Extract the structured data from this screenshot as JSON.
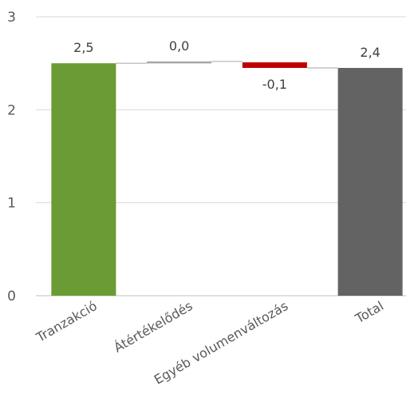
{
  "chart_data": {
    "type": "bar",
    "subtype": "waterfall",
    "categories": [
      "Tranzakció",
      "Átértékelődés",
      "Egyéb volumenváltozás",
      "Total"
    ],
    "values": [
      2.5,
      0.02,
      -0.06,
      2.45
    ],
    "bar_start": [
      0,
      2.5,
      2.51,
      0
    ],
    "bar_end": [
      2.5,
      2.52,
      2.45,
      2.45
    ],
    "data_labels": [
      "2,5",
      "0,0",
      "-0,1",
      "2,4"
    ],
    "label_position": [
      "above",
      "above",
      "below",
      "above"
    ],
    "bar_colors": [
      "#6a9b34",
      "#a6a6a6",
      "#c00000",
      "#636363"
    ],
    "ylim": [
      0,
      3
    ],
    "yticks": [
      0,
      1,
      2,
      3
    ],
    "ytick_labels": [
      "0",
      "1",
      "2",
      "3"
    ],
    "grid": true,
    "gridline_color": "#d9d9d9",
    "title": "",
    "xlabel": "",
    "ylabel": ""
  }
}
